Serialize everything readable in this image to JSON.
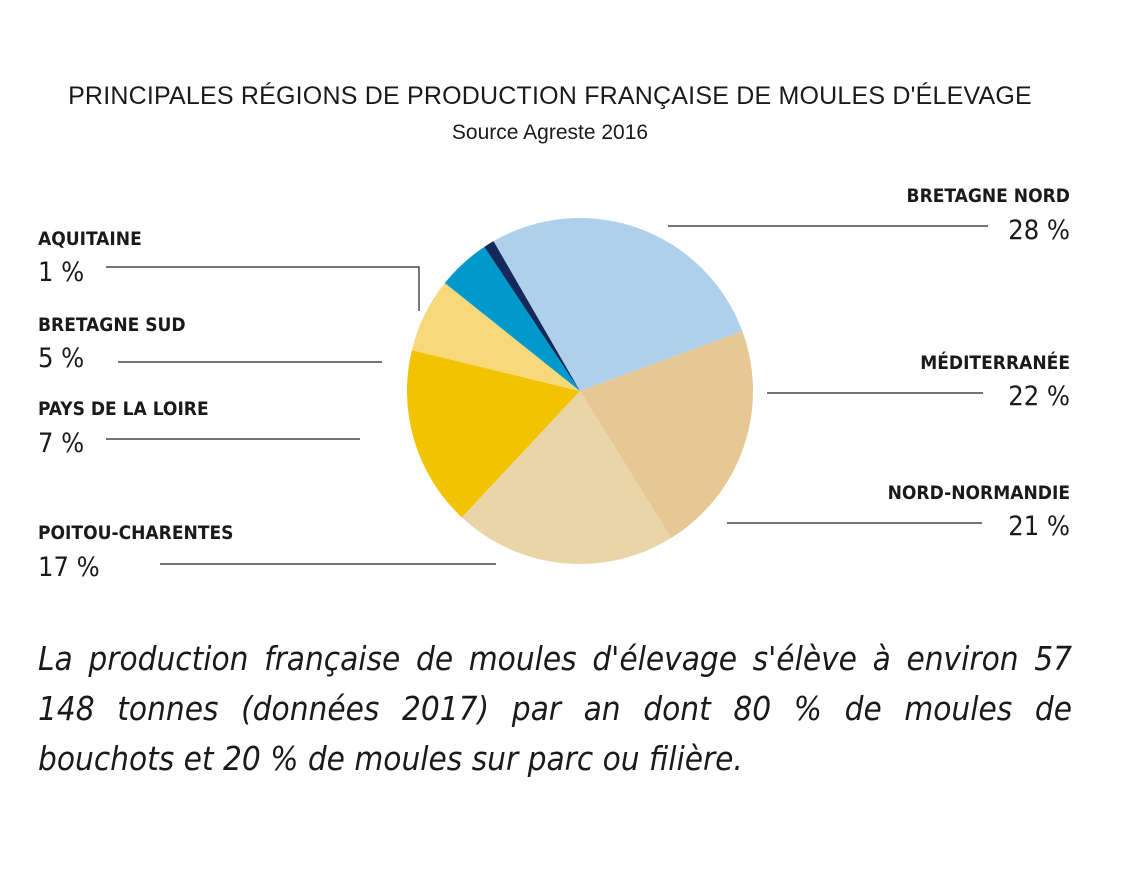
{
  "chart_data": {
    "type": "pie",
    "title": "PRINCIPALES RÉGIONS DE PRODUCTION FRANÇAISE DE MOULES D'ÉLEVAGE",
    "subtitle": "Source Agreste 2016",
    "slices": [
      {
        "name": "BRETAGNE NORD",
        "value": 28,
        "label": "28 %",
        "color": "#aed0ea"
      },
      {
        "name": "MÉDITERRANÉE",
        "value": 22,
        "label": "22 %",
        "color": "#e7c894"
      },
      {
        "name": "NORD-NORMANDIE",
        "value": 21,
        "label": "21 %",
        "color": "#e9d5a8"
      },
      {
        "name": "POITOU-CHARENTES",
        "value": 17,
        "label": "17 %",
        "color": "#f2c300"
      },
      {
        "name": "PAYS DE LA LOIRE",
        "value": 7,
        "label": "7 %",
        "color": "#f7d97a"
      },
      {
        "name": "BRETAGNE SUD",
        "value": 5,
        "label": "5 %",
        "color": "#0099cc"
      },
      {
        "name": "AQUITAINE",
        "value": 1,
        "label": "1 %",
        "color": "#14285a"
      }
    ]
  },
  "caption": "La production française de moules d'élevage s'élève à environ 57 148 tonnes (données 2017) par an dont 80 % de moules de bouchots et 20 % de moules sur parc ou filière."
}
